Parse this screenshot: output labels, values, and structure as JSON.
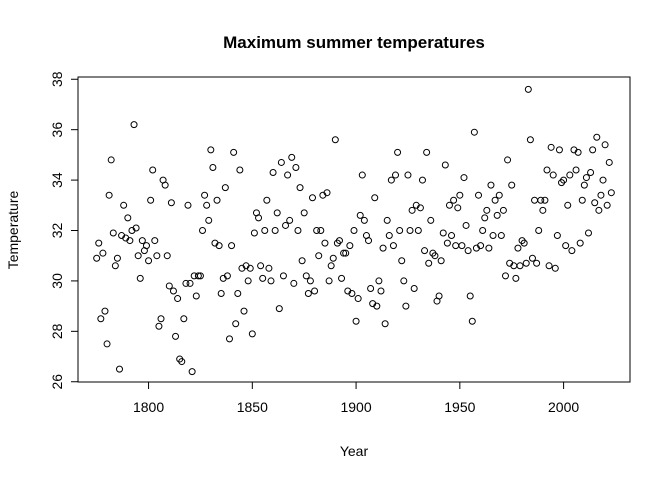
{
  "chart_data": {
    "type": "scatter",
    "title": "Maximum summer temperatures",
    "x_label": "Year",
    "y_label": "Temperature",
    "x": [
      1775,
      1776,
      1777,
      1778,
      1779,
      1780,
      1781,
      1782,
      1783,
      1784,
      1785,
      1786,
      1787,
      1788,
      1789,
      1790,
      1791,
      1792,
      1793,
      1794,
      1795,
      1796,
      1797,
      1798,
      1799,
      1800,
      1801,
      1802,
      1803,
      1804,
      1805,
      1806,
      1807,
      1808,
      1809,
      1810,
      1811,
      1812,
      1813,
      1814,
      1815,
      1816,
      1817,
      1818,
      1819,
      1820,
      1821,
      1822,
      1823,
      1824,
      1825,
      1826,
      1827,
      1828,
      1829,
      1830,
      1831,
      1832,
      1833,
      1834,
      1835,
      1836,
      1837,
      1838,
      1839,
      1840,
      1841,
      1842,
      1843,
      1844,
      1845,
      1846,
      1847,
      1848,
      1849,
      1850,
      1851,
      1852,
      1853,
      1854,
      1855,
      1856,
      1857,
      1858,
      1859,
      1860,
      1861,
      1862,
      1863,
      1864,
      1865,
      1866,
      1867,
      1868,
      1869,
      1870,
      1871,
      1872,
      1873,
      1874,
      1875,
      1876,
      1877,
      1878,
      1879,
      1880,
      1881,
      1882,
      1883,
      1884,
      1885,
      1886,
      1887,
      1888,
      1889,
      1890,
      1891,
      1892,
      1893,
      1894,
      1895,
      1896,
      1897,
      1898,
      1899,
      1900,
      1901,
      1902,
      1903,
      1904,
      1905,
      1906,
      1907,
      1908,
      1909,
      1910,
      1911,
      1912,
      1913,
      1914,
      1915,
      1916,
      1917,
      1918,
      1919,
      1920,
      1921,
      1922,
      1923,
      1924,
      1925,
      1926,
      1927,
      1928,
      1929,
      1930,
      1931,
      1932,
      1933,
      1934,
      1935,
      1936,
      1937,
      1938,
      1939,
      1940,
      1941,
      1942,
      1943,
      1944,
      1945,
      1946,
      1947,
      1948,
      1949,
      1950,
      1951,
      1952,
      1953,
      1954,
      1955,
      1956,
      1957,
      1958,
      1959,
      1960,
      1961,
      1962,
      1963,
      1964,
      1965,
      1966,
      1967,
      1968,
      1969,
      1970,
      1971,
      1972,
      1973,
      1974,
      1975,
      1976,
      1977,
      1978,
      1979,
      1980,
      1981,
      1982,
      1983,
      1984,
      1985,
      1986,
      1987,
      1988,
      1989,
      1990,
      1991,
      1992,
      1993,
      1994,
      1995,
      1996,
      1997,
      1998,
      1999,
      2000,
      2001,
      2002,
      2003,
      2004,
      2005,
      2006,
      2007,
      2008,
      2009,
      2010,
      2011,
      2012,
      2013,
      2014,
      2015,
      2016,
      2017,
      2018,
      2019,
      2020,
      2021,
      2022,
      2023
    ],
    "values": [
      30.9,
      31.5,
      28.5,
      31.1,
      28.8,
      27.5,
      33.4,
      34.8,
      31.9,
      30.6,
      30.9,
      26.5,
      31.8,
      33.0,
      31.7,
      32.5,
      31.6,
      32.0,
      36.2,
      32.1,
      31.0,
      30.1,
      31.6,
      31.2,
      31.4,
      30.8,
      33.2,
      34.4,
      31.6,
      31.0,
      28.2,
      28.5,
      34.0,
      33.8,
      31.0,
      29.8,
      33.1,
      29.6,
      27.8,
      29.3,
      26.9,
      26.8,
      28.5,
      29.9,
      33.0,
      29.9,
      26.4,
      30.2,
      29.4,
      30.2,
      30.2,
      32.0,
      33.4,
      33.0,
      32.4,
      35.2,
      34.5,
      31.5,
      33.2,
      31.4,
      29.5,
      30.1,
      33.7,
      30.2,
      27.7,
      31.4,
      35.1,
      28.3,
      29.5,
      34.4,
      30.5,
      28.8,
      30.6,
      30.0,
      30.5,
      27.9,
      31.9,
      32.7,
      32.5,
      30.6,
      30.1,
      32.0,
      33.2,
      30.5,
      30.0,
      34.3,
      32.0,
      32.7,
      28.9,
      34.7,
      30.2,
      32.2,
      34.2,
      32.4,
      34.9,
      29.9,
      34.5,
      32.0,
      33.7,
      30.8,
      32.7,
      30.2,
      29.5,
      30.0,
      33.3,
      29.6,
      32.0,
      31.0,
      32.0,
      33.4,
      31.5,
      33.5,
      30.0,
      30.6,
      30.9,
      35.6,
      31.5,
      31.6,
      30.1,
      31.1,
      31.1,
      29.6,
      31.4,
      29.5,
      32.0,
      28.4,
      29.3,
      32.6,
      34.2,
      32.4,
      31.8,
      31.6,
      29.7,
      29.1,
      33.3,
      29.0,
      30.0,
      29.6,
      31.3,
      28.3,
      32.4,
      31.8,
      34.0,
      31.4,
      34.2,
      35.1,
      32.0,
      30.8,
      30.0,
      29.0,
      34.2,
      32.0,
      32.8,
      29.7,
      33.0,
      32.0,
      32.9,
      34.0,
      31.2,
      35.1,
      30.7,
      32.4,
      31.1,
      31.0,
      29.2,
      29.4,
      30.8,
      31.9,
      34.6,
      31.5,
      33.0,
      31.8,
      33.2,
      31.4,
      32.9,
      33.4,
      31.4,
      34.1,
      32.2,
      31.2,
      29.4,
      28.4,
      35.9,
      31.3,
      33.4,
      31.4,
      32.0,
      32.5,
      32.8,
      31.3,
      33.8,
      31.8,
      33.2,
      32.6,
      33.4,
      31.8,
      32.8,
      30.2,
      34.8,
      30.7,
      33.8,
      30.6,
      30.1,
      31.3,
      30.6,
      31.6,
      31.5,
      30.7,
      37.6,
      35.6,
      30.9,
      33.2,
      30.7,
      32.0,
      33.2,
      32.8,
      33.2,
      34.4,
      30.6,
      35.3,
      34.2,
      30.5,
      31.8,
      35.2,
      33.9,
      34.0,
      31.4,
      33.0,
      34.2,
      31.2,
      35.2,
      34.4,
      35.1,
      31.5,
      33.2,
      33.8,
      34.1,
      31.9,
      34.3,
      35.2,
      33.1,
      35.7,
      32.8,
      33.4,
      34.0,
      35.4,
      33.0,
      34.7,
      33.5
    ],
    "color": "#000000",
    "xlim": [
      1766,
      2032
    ],
    "ylim": [
      25.95,
      38.05
    ],
    "xticks": [
      1800,
      1850,
      1900,
      1950,
      2000
    ],
    "yticks": [
      26,
      28,
      30,
      32,
      34,
      36,
      38
    ]
  }
}
